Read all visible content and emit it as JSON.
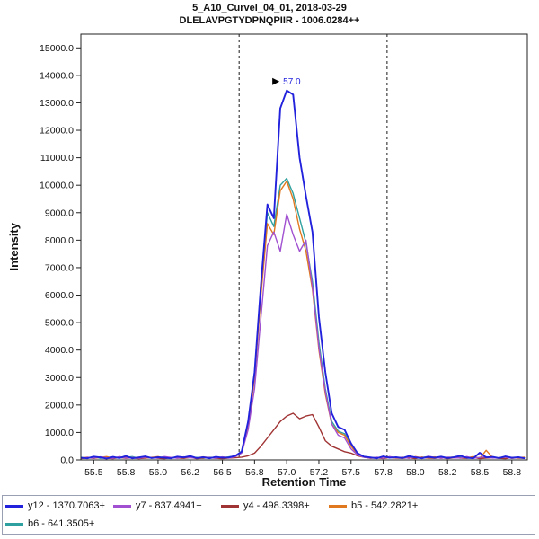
{
  "title": {
    "line1": "5_A10_Curvel_04_01, 2018-03-29",
    "line2": "DLELAVPGTYDPNQPIIR - 1006.0284++"
  },
  "chart_data": {
    "type": "line",
    "title": "5_A10_Curvel_04_01, 2018-03-29",
    "subtitle": "DLELAVPGTYDPNQPIIR - 1006.0284++",
    "xlabel": "Retention Time",
    "ylabel": "Intensity",
    "xlim": [
      55.4,
      58.87
    ],
    "ylim": [
      0,
      15500
    ],
    "grid": false,
    "legend_position": "bottom",
    "boundaries": [
      56.63,
      57.78
    ],
    "peak_annotation": {
      "label": "57.0",
      "x": 57.0,
      "y": 13450,
      "color": "#2222dd"
    },
    "x_ticks": [
      {
        "value": 55.5,
        "label": "55.5"
      },
      {
        "value": 55.75,
        "label": "55.8"
      },
      {
        "value": 56.0,
        "label": "56.0"
      },
      {
        "value": 56.25,
        "label": "56.2"
      },
      {
        "value": 56.5,
        "label": "56.5"
      },
      {
        "value": 56.75,
        "label": "56.8"
      },
      {
        "value": 57.0,
        "label": "57.0"
      },
      {
        "value": 57.25,
        "label": "57.2"
      },
      {
        "value": 57.5,
        "label": "57.5"
      },
      {
        "value": 57.75,
        "label": "57.8"
      },
      {
        "value": 58.0,
        "label": "58.0"
      },
      {
        "value": 58.25,
        "label": "58.2"
      },
      {
        "value": 58.5,
        "label": "58.5"
      },
      {
        "value": 58.75,
        "label": "58.8"
      }
    ],
    "y_ticks": [
      {
        "value": 0,
        "label": "0.0"
      },
      {
        "value": 1000,
        "label": "1000.0"
      },
      {
        "value": 2000,
        "label": "2000.0"
      },
      {
        "value": 3000,
        "label": "3000.0"
      },
      {
        "value": 4000,
        "label": "4000.0"
      },
      {
        "value": 5000,
        "label": "5000.0"
      },
      {
        "value": 6000,
        "label": "6000.0"
      },
      {
        "value": 7000,
        "label": "7000.0"
      },
      {
        "value": 8000,
        "label": "8000.0"
      },
      {
        "value": 9000,
        "label": "9000.0"
      },
      {
        "value": 10000,
        "label": "10000.0"
      },
      {
        "value": 11000,
        "label": "11000.0"
      },
      {
        "value": 12000,
        "label": "12000.0"
      },
      {
        "value": 13000,
        "label": "13000.0"
      },
      {
        "value": 14000,
        "label": "14000.0"
      },
      {
        "value": 15000,
        "label": "15000.0"
      }
    ],
    "x": [
      55.4,
      55.45,
      55.5,
      55.55,
      55.6,
      55.65,
      55.7,
      55.75,
      55.8,
      55.85,
      55.9,
      55.95,
      56.0,
      56.05,
      56.1,
      56.15,
      56.2,
      56.25,
      56.3,
      56.35,
      56.4,
      56.45,
      56.5,
      56.55,
      56.6,
      56.65,
      56.7,
      56.75,
      56.8,
      56.85,
      56.9,
      56.95,
      57.0,
      57.05,
      57.1,
      57.15,
      57.2,
      57.25,
      57.3,
      57.35,
      57.4,
      57.45,
      57.5,
      57.55,
      57.6,
      57.65,
      57.7,
      57.75,
      57.8,
      57.85,
      57.9,
      57.95,
      58.0,
      58.05,
      58.1,
      58.15,
      58.2,
      58.25,
      58.3,
      58.35,
      58.4,
      58.45,
      58.5,
      58.55,
      58.6,
      58.65,
      58.7,
      58.75,
      58.8,
      58.85
    ],
    "series": [
      {
        "name": "y12 - 1370.7063+",
        "color": "#2222dd",
        "width": 1.9,
        "values": [
          80,
          60,
          120,
          90,
          50,
          110,
          70,
          140,
          60,
          90,
          130,
          70,
          100,
          80,
          60,
          120,
          90,
          140,
          70,
          100,
          60,
          110,
          80,
          90,
          150,
          300,
          1400,
          3200,
          6400,
          9300,
          8800,
          12800,
          13450,
          13300,
          11000,
          9600,
          8300,
          5200,
          3200,
          1700,
          1200,
          1100,
          600,
          250,
          120,
          90,
          60,
          130,
          80,
          100,
          70,
          140,
          90,
          60,
          110,
          80,
          120,
          70,
          100,
          150,
          80,
          60,
          260,
          90,
          110,
          70,
          130,
          80,
          100,
          60
        ]
      },
      {
        "name": "y7 - 837.4941+",
        "color": "#a050d0",
        "width": 1.4,
        "values": [
          60,
          90,
          70,
          110,
          80,
          60,
          120,
          70,
          90,
          60,
          100,
          80,
          70,
          120,
          90,
          60,
          110,
          80,
          70,
          100,
          90,
          60,
          110,
          70,
          120,
          250,
          1100,
          2600,
          5200,
          7800,
          8300,
          7600,
          8950,
          8200,
          7600,
          8000,
          6300,
          4100,
          2500,
          1300,
          900,
          800,
          400,
          180,
          100,
          70,
          100,
          60,
          120,
          80,
          90,
          60,
          110,
          70,
          130,
          90,
          60,
          100,
          80,
          70,
          120,
          60,
          90,
          110,
          70,
          80,
          100,
          60,
          90,
          70
        ]
      },
      {
        "name": "y4 - 498.3398+",
        "color": "#a03333",
        "width": 1.4,
        "values": [
          50,
          80,
          60,
          100,
          70,
          50,
          90,
          60,
          80,
          50,
          70,
          90,
          60,
          50,
          80,
          70,
          60,
          90,
          50,
          70,
          80,
          60,
          50,
          70,
          80,
          100,
          150,
          250,
          500,
          800,
          1100,
          1400,
          1600,
          1700,
          1500,
          1600,
          1650,
          1200,
          700,
          500,
          400,
          300,
          250,
          150,
          100,
          60,
          80,
          50,
          90,
          70,
          60,
          80,
          50,
          100,
          70,
          60,
          90,
          50,
          80,
          70,
          60,
          90,
          50,
          70,
          80,
          60,
          50,
          90,
          70,
          60
        ]
      },
      {
        "name": "b5 - 542.2821+",
        "color": "#e07820",
        "width": 1.4,
        "values": [
          70,
          100,
          60,
          90,
          120,
          70,
          80,
          110,
          60,
          100,
          70,
          90,
          120,
          60,
          80,
          100,
          70,
          90,
          60,
          110,
          80,
          70,
          100,
          90,
          130,
          280,
          1200,
          3000,
          6000,
          8600,
          8200,
          9800,
          10150,
          9500,
          8400,
          7600,
          6200,
          4000,
          2400,
          1300,
          1000,
          900,
          500,
          200,
          110,
          80,
          60,
          110,
          90,
          70,
          100,
          60,
          120,
          80,
          70,
          110,
          60,
          90,
          100,
          70,
          80,
          120,
          60,
          350,
          90,
          70,
          110,
          60,
          80,
          100
        ]
      },
      {
        "name": "b6 - 641.3505+",
        "color": "#2fa0a0",
        "width": 1.4,
        "values": [
          90,
          70,
          110,
          60,
          80,
          100,
          70,
          90,
          120,
          60,
          80,
          70,
          100,
          90,
          60,
          110,
          70,
          80,
          90,
          60,
          100,
          80,
          70,
          110,
          140,
          320,
          1300,
          3100,
          6300,
          9000,
          8500,
          10000,
          10250,
          9700,
          8800,
          7900,
          6500,
          4300,
          2600,
          1400,
          1050,
          950,
          550,
          220,
          120,
          70,
          90,
          60,
          110,
          80,
          70,
          100,
          60,
          90,
          120,
          70,
          80,
          60,
          100,
          90,
          70,
          110,
          60,
          80,
          90,
          70,
          100,
          60,
          90,
          80
        ]
      }
    ]
  },
  "legend": {
    "rows": [
      [
        {
          "label": "y12 - 1370.7063+",
          "color": "#2222dd"
        },
        {
          "label": "y7 - 837.4941+",
          "color": "#a050d0"
        },
        {
          "label": "y4 - 498.3398+",
          "color": "#a03333"
        },
        {
          "label": "b5 - 542.2821+",
          "color": "#e07820"
        }
      ],
      [
        {
          "label": "b6 - 641.3505+",
          "color": "#2fa0a0"
        }
      ]
    ]
  }
}
